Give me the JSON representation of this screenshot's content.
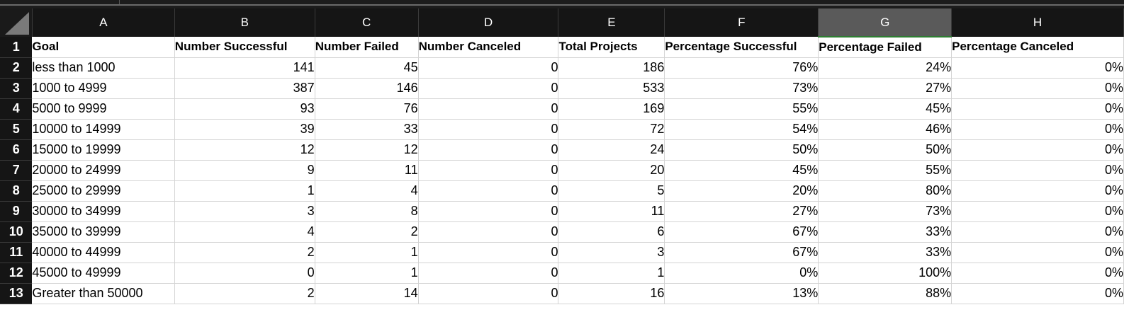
{
  "columns": [
    "A",
    "B",
    "C",
    "D",
    "E",
    "F",
    "G",
    "H"
  ],
  "selected_column": "G",
  "headers": [
    "Goal",
    "Number Successful",
    "Number Failed",
    "Number Canceled",
    "Total Projects",
    "Percentage Successful",
    "Percentage Failed",
    "Percentage Canceled"
  ],
  "rows": [
    [
      "less than 1000",
      "141",
      "45",
      "0",
      "186",
      "76%",
      "24%",
      "0%"
    ],
    [
      "1000 to 4999",
      "387",
      "146",
      "0",
      "533",
      "73%",
      "27%",
      "0%"
    ],
    [
      "5000 to 9999",
      "93",
      "76",
      "0",
      "169",
      "55%",
      "45%",
      "0%"
    ],
    [
      "10000 to 14999",
      "39",
      "33",
      "0",
      "72",
      "54%",
      "46%",
      "0%"
    ],
    [
      "15000 to 19999",
      "12",
      "12",
      "0",
      "24",
      "50%",
      "50%",
      "0%"
    ],
    [
      "20000 to 24999",
      "9",
      "11",
      "0",
      "20",
      "45%",
      "55%",
      "0%"
    ],
    [
      "25000 to 29999",
      "1",
      "4",
      "0",
      "5",
      "20%",
      "80%",
      "0%"
    ],
    [
      "30000 to 34999",
      "3",
      "8",
      "0",
      "11",
      "27%",
      "73%",
      "0%"
    ],
    [
      "35000 to 39999",
      "4",
      "2",
      "0",
      "6",
      "67%",
      "33%",
      "0%"
    ],
    [
      "40000 to 44999",
      "2",
      "1",
      "0",
      "3",
      "67%",
      "33%",
      "0%"
    ],
    [
      "45000 to 49999",
      "0",
      "1",
      "0",
      "1",
      "0%",
      "100%",
      "0%"
    ],
    [
      "Greater than 50000",
      "2",
      "14",
      "0",
      "16",
      "13%",
      "88%",
      "0%"
    ]
  ]
}
